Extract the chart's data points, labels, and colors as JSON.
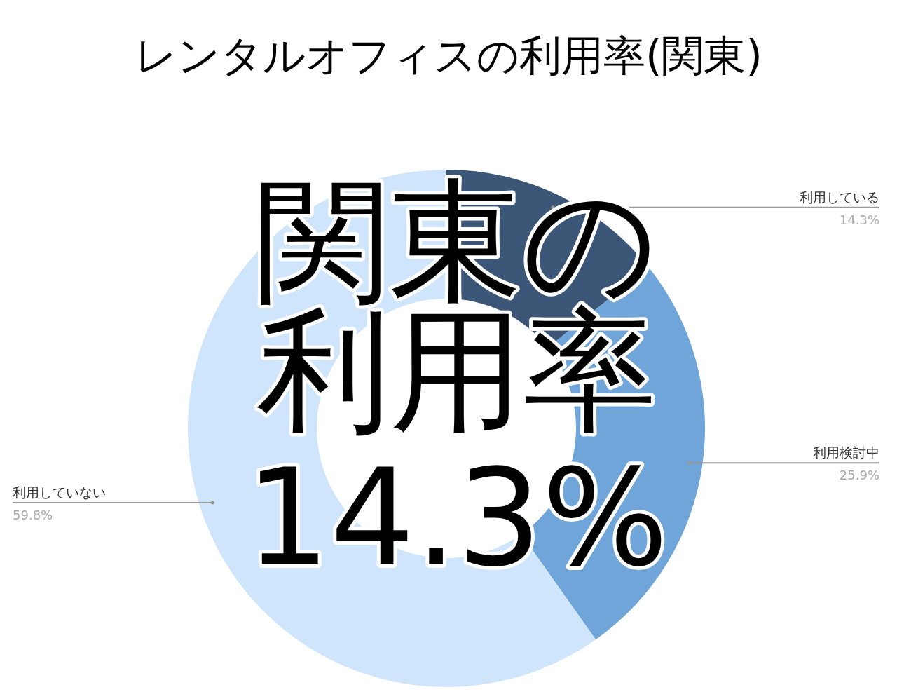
{
  "chart_data": {
    "type": "donut",
    "title": "レンタルオフィスの利用率(関東)",
    "categories": [
      "利用している",
      "利用検討中",
      "利用していない"
    ],
    "values": [
      14.3,
      25.9,
      59.8
    ],
    "colors": [
      "#3b5676",
      "#6fa5d9",
      "#cfe5fb"
    ],
    "value_labels": [
      "14.3%",
      "25.9%",
      "59.8%"
    ],
    "annotations": [
      "関東の",
      "利用率",
      "14.3%"
    ]
  }
}
